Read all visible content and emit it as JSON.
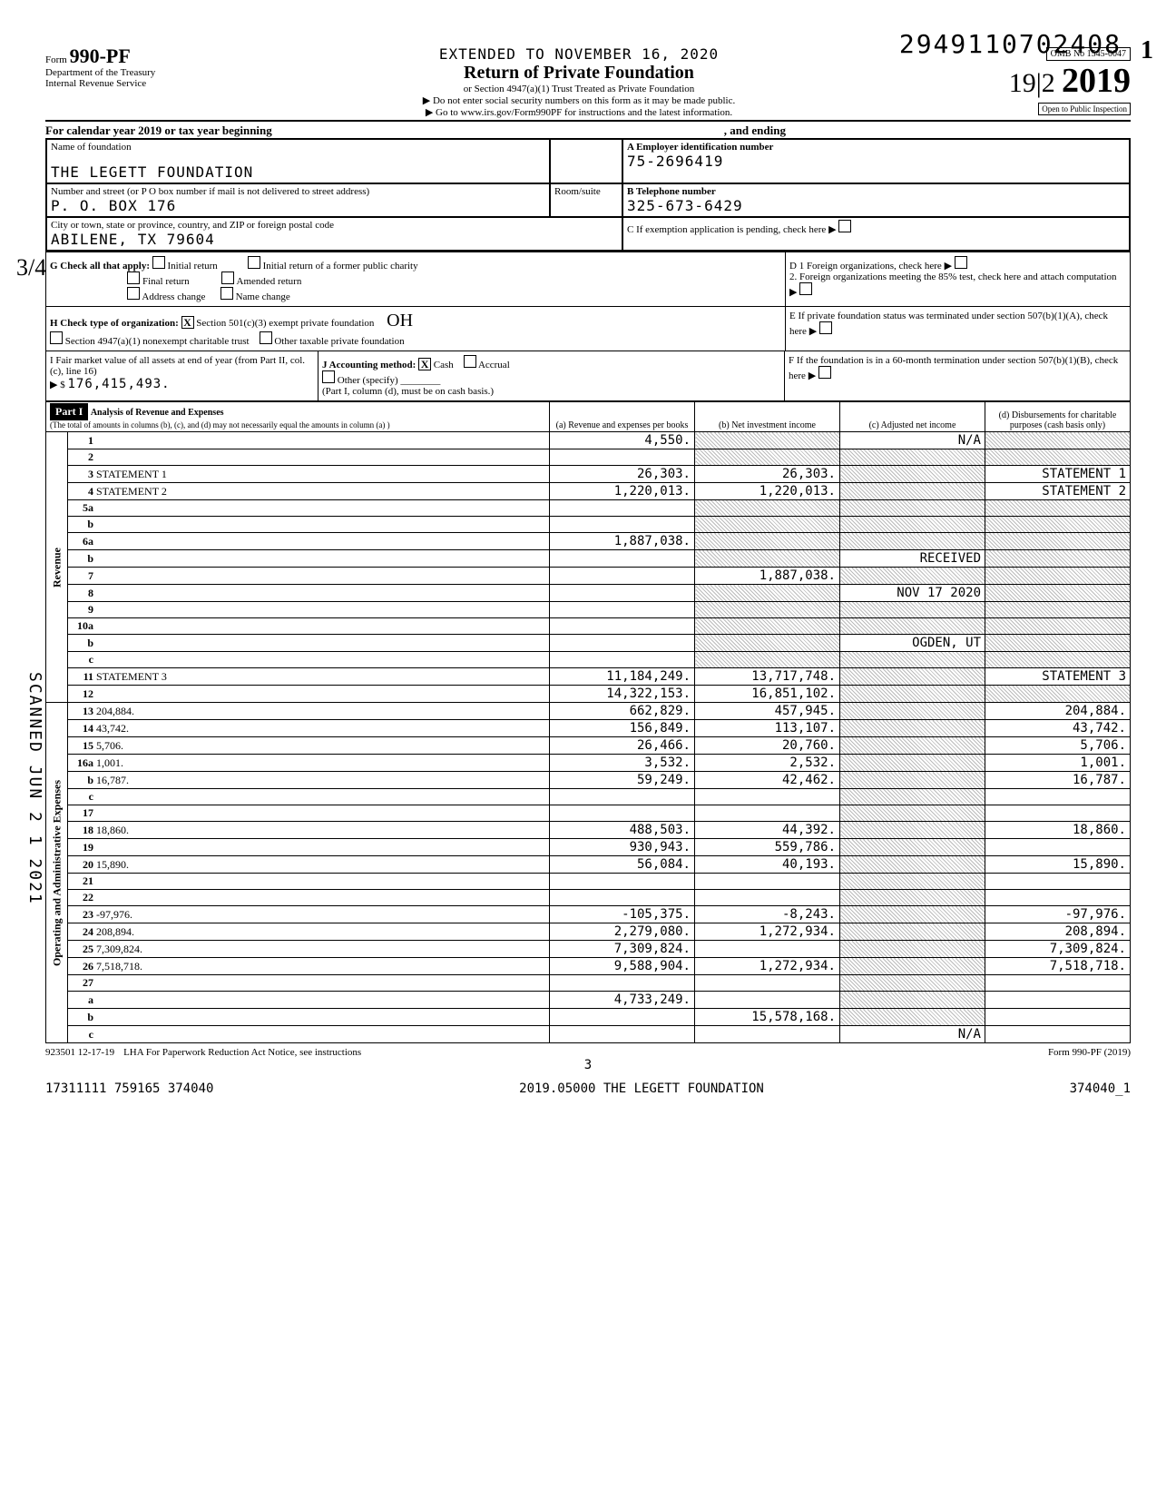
{
  "top_number": "2949110702408",
  "top_one": "1",
  "extended_line": "EXTENDED TO NOVEMBER 16, 2020",
  "main_title": "Return of Private Foundation",
  "sub1": "or Section 4947(a)(1) Trust Treated as Private Foundation",
  "sub2": "▶ Do not enter social security numbers on this form as it may be made public.",
  "sub3": "▶ Go to www.irs.gov/Form990PF for instructions and the latest information.",
  "form_no": "990-PF",
  "form_label": "Form",
  "dept": "Department of the Treasury",
  "irs": "Internal Revenue Service",
  "omb": "OMB No  1545-0047",
  "year": "2019",
  "hand_year": "19|2",
  "open": "Open to Public Inspection",
  "cal_line": "For calendar year 2019 or tax year beginning",
  "and_ending": ", and ending",
  "name_label": "Name of foundation",
  "foundation_name": "THE LEGETT FOUNDATION",
  "addr_label": "Number and street (or P O  box number if mail is not delivered to street address)",
  "addr": "P. O. BOX 176",
  "room_label": "Room/suite",
  "city_label": "City or town, state or province, country, and ZIP or foreign postal code",
  "city": "ABILENE, TX   79604",
  "ein_label": "A  Employer identification number",
  "ein": "75-2696419",
  "tel_label": "B  Telephone number",
  "tel": "325-673-6429",
  "c_label": "C  If exemption application is pending, check here",
  "g_label": "G  Check all that apply:",
  "g_opts": [
    "Initial return",
    "Final return",
    "Address change",
    "Initial return of a former public charity",
    "Amended return",
    "Name change"
  ],
  "d1": "D 1  Foreign organizations, check here",
  "d2": "2. Foreign organizations meeting the 85% test, check here and attach computation",
  "h_label": "H  Check type of organization:",
  "h_x": "X",
  "h_opt1": "Section 501(c)(3) exempt private foundation",
  "h_opt2": "Section 4947(a)(1) nonexempt charitable trust",
  "h_opt3": "Other taxable private foundation",
  "e_label": "E  If private foundation status was terminated under section 507(b)(1)(A), check here",
  "i_label": "I  Fair market value of all assets at end of year (from Part II, col. (c), line 16)",
  "i_val": "176,415,493.",
  "j_label": "J  Accounting method:",
  "j_x": "X",
  "j_cash": "Cash",
  "j_accrual": "Accrual",
  "j_other": "Other (specify)",
  "j_note": "(Part I, column (d), must be on cash basis.)",
  "f_label": "F  If the foundation is in a 60-month termination under section 507(b)(1)(B), check here",
  "part1": "Part I",
  "part1_title": "Analysis of Revenue and Expenses",
  "part1_sub": "(The total of amounts in columns (b), (c), and (d) may not necessarily equal the amounts in column (a) )",
  "col_a": "(a) Revenue and expenses per books",
  "col_b": "(b) Net investment income",
  "col_c": "(c) Adjusted net income",
  "col_d": "(d) Disbursements for charitable purposes (cash basis only)",
  "rev_label": "Revenue",
  "op_label": "Operating and Administrative Expenses",
  "rows": [
    {
      "n": "1",
      "d": "",
      "a": "4,550.",
      "b": "",
      "c": "N/A"
    },
    {
      "n": "2",
      "d": "",
      "a": "",
      "b": "",
      "c": ""
    },
    {
      "n": "3",
      "d": "STATEMENT 1",
      "a": "26,303.",
      "b": "26,303.",
      "c": ""
    },
    {
      "n": "4",
      "d": "STATEMENT 2",
      "a": "1,220,013.",
      "b": "1,220,013.",
      "c": ""
    },
    {
      "n": "5a",
      "d": "",
      "a": "",
      "b": "",
      "c": ""
    },
    {
      "n": "b",
      "d": "",
      "a": "",
      "b": "",
      "c": ""
    },
    {
      "n": "6a",
      "d": "",
      "a": "1,887,038.",
      "b": "",
      "c": ""
    },
    {
      "n": "b",
      "d": "",
      "a": "",
      "b": "",
      "c": "RECEIVED"
    },
    {
      "n": "7",
      "d": "",
      "a": "",
      "b": "1,887,038.",
      "c": ""
    },
    {
      "n": "8",
      "d": "",
      "a": "",
      "b": "",
      "c": "NOV 17 2020"
    },
    {
      "n": "9",
      "d": "",
      "a": "",
      "b": "",
      "c": ""
    },
    {
      "n": "10a",
      "d": "",
      "a": "",
      "b": "",
      "c": ""
    },
    {
      "n": "b",
      "d": "",
      "a": "",
      "b": "",
      "c": "OGDEN, UT"
    },
    {
      "n": "c",
      "d": "",
      "a": "",
      "b": "",
      "c": ""
    },
    {
      "n": "11",
      "d": "STATEMENT 3",
      "a": "11,184,249.",
      "b": "13,717,748.",
      "c": ""
    },
    {
      "n": "12",
      "d": "",
      "a": "14,322,153.",
      "b": "16,851,102.",
      "c": ""
    },
    {
      "n": "13",
      "d": "204,884.",
      "a": "662,829.",
      "b": "457,945.",
      "c": ""
    },
    {
      "n": "14",
      "d": "43,742.",
      "a": "156,849.",
      "b": "113,107.",
      "c": ""
    },
    {
      "n": "15",
      "d": "5,706.",
      "a": "26,466.",
      "b": "20,760.",
      "c": ""
    },
    {
      "n": "16a",
      "d": "1,001.",
      "a": "3,532.",
      "b": "2,532.",
      "c": ""
    },
    {
      "n": "b",
      "d": "16,787.",
      "a": "59,249.",
      "b": "42,462.",
      "c": ""
    },
    {
      "n": "c",
      "d": "",
      "a": "",
      "b": "",
      "c": ""
    },
    {
      "n": "17",
      "d": "",
      "a": "",
      "b": "",
      "c": ""
    },
    {
      "n": "18",
      "d": "18,860.",
      "a": "488,503.",
      "b": "44,392.",
      "c": ""
    },
    {
      "n": "19",
      "d": "",
      "a": "930,943.",
      "b": "559,786.",
      "c": ""
    },
    {
      "n": "20",
      "d": "15,890.",
      "a": "56,084.",
      "b": "40,193.",
      "c": ""
    },
    {
      "n": "21",
      "d": "",
      "a": "",
      "b": "",
      "c": ""
    },
    {
      "n": "22",
      "d": "",
      "a": "",
      "b": "",
      "c": ""
    },
    {
      "n": "23",
      "d": "-97,976.",
      "a": "-105,375.",
      "b": "-8,243.",
      "c": ""
    },
    {
      "n": "24",
      "d": "208,894.",
      "a": "2,279,080.",
      "b": "1,272,934.",
      "c": ""
    },
    {
      "n": "25",
      "d": "7,309,824.",
      "a": "7,309,824.",
      "b": "",
      "c": ""
    },
    {
      "n": "26",
      "d": "7,518,718.",
      "a": "9,588,904.",
      "b": "1,272,934.",
      "c": ""
    },
    {
      "n": "27",
      "d": "",
      "a": "",
      "b": "",
      "c": ""
    },
    {
      "n": "a",
      "d": "",
      "a": "4,733,249.",
      "b": "",
      "c": ""
    },
    {
      "n": "b",
      "d": "",
      "a": "",
      "b": "15,578,168.",
      "c": ""
    },
    {
      "n": "c",
      "d": "",
      "a": "",
      "b": "",
      "c": "N/A"
    }
  ],
  "paperwork": "LHA  For Paperwork Reduction Act Notice, see instructions",
  "form_footer": "Form 990-PF (2019)",
  "code1": "923501 12-17-19",
  "footer_left": "17311111 759165 374040",
  "footer_center": "2019.05000 THE LEGETT FOUNDATION",
  "footer_right": "374040_1",
  "page3": "3",
  "scanned": "SCANNED JUN 2 1 2021",
  "hand34": "3/4",
  "hand_init": "OH"
}
